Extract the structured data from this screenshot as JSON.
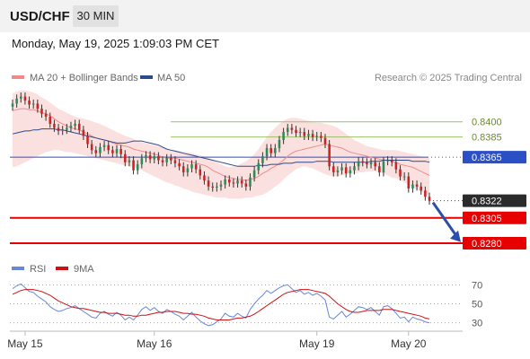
{
  "header": {
    "symbol": "USD/CHF",
    "timeframe": "30 MIN",
    "timestamp": "Monday, May 19, 2025 1:09:03 PM CET"
  },
  "colors": {
    "bull": "#2e8b57",
    "bear": "#cc2222",
    "ma20": "#f08a8a",
    "band": "#f7c6c6",
    "ma50": "#2b4b8c",
    "current": "#2b4fc4",
    "support": "#e60000",
    "resistance": "#9bc06a",
    "rsi": "#6a86d6",
    "rsi_ma": "#d01010"
  },
  "chart_data": [
    {
      "type": "candlestick",
      "title": "",
      "legend": [
        "MA 20 + Bollinger Bands",
        "MA 50"
      ],
      "legend_placement": "top-left",
      "credit": "Research © 2025 Trading Central",
      "x_ticks": [
        "May 15",
        "May 16",
        "May 19",
        "May 20"
      ],
      "ylim": [
        0.8272,
        0.8437
      ],
      "levels": [
        {
          "label": "0.8400",
          "value": 0.84,
          "kind": "resistance"
        },
        {
          "label": "0.8385",
          "value": 0.8385,
          "kind": "resistance"
        },
        {
          "label": "0.8365",
          "value": 0.8365,
          "kind": "current"
        },
        {
          "label": "0.8322",
          "value": 0.8322,
          "kind": "last"
        },
        {
          "label": "0.8305",
          "value": 0.8305,
          "kind": "support"
        },
        {
          "label": "0.8280",
          "value": 0.828,
          "kind": "support"
        }
      ],
      "forecast_arrow": {
        "from": 0.8322,
        "to": 0.8282,
        "direction": "down"
      },
      "close": [
        0.8418,
        0.8423,
        0.8425,
        0.8421,
        0.8417,
        0.8418,
        0.8413,
        0.8408,
        0.8405,
        0.8398,
        0.8394,
        0.8391,
        0.8392,
        0.8394,
        0.8396,
        0.8398,
        0.8392,
        0.8386,
        0.8378,
        0.8372,
        0.8369,
        0.8375,
        0.8377,
        0.8372,
        0.8369,
        0.8373,
        0.8368,
        0.836,
        0.8362,
        0.8352,
        0.8358,
        0.8364,
        0.8367,
        0.8363,
        0.8366,
        0.8362,
        0.836,
        0.8364,
        0.8362,
        0.8359,
        0.8356,
        0.835,
        0.8354,
        0.8358,
        0.8353,
        0.8347,
        0.8342,
        0.8336,
        0.8335,
        0.8336,
        0.8338,
        0.8343,
        0.834,
        0.8339,
        0.8342,
        0.8339,
        0.8336,
        0.8345,
        0.8352,
        0.8359,
        0.8366,
        0.8374,
        0.8369,
        0.8374,
        0.8382,
        0.839,
        0.8394,
        0.8392,
        0.8389,
        0.839,
        0.8386,
        0.8388,
        0.8385,
        0.8386,
        0.8384,
        0.8378,
        0.8356,
        0.835,
        0.8352,
        0.8355,
        0.8349,
        0.8352,
        0.8356,
        0.8361,
        0.836,
        0.8358,
        0.836,
        0.8356,
        0.835,
        0.8361,
        0.8362,
        0.836,
        0.8353,
        0.8346,
        0.8346,
        0.8334,
        0.8338,
        0.8336,
        0.8332,
        0.8326,
        0.8322
      ],
      "ma20": [
        0.8411,
        0.8412,
        0.8413,
        0.8413,
        0.8412,
        0.8412,
        0.8411,
        0.8409,
        0.8408,
        0.8406,
        0.8403,
        0.84,
        0.8398,
        0.8396,
        0.8394,
        0.8393,
        0.8392,
        0.839,
        0.8388,
        0.8386,
        0.8384,
        0.8383,
        0.8382,
        0.8381,
        0.8379,
        0.8378,
        0.8377,
        0.8376,
        0.8375,
        0.8373,
        0.8372,
        0.8371,
        0.837,
        0.8369,
        0.8368,
        0.8367,
        0.8365,
        0.8364,
        0.8364,
        0.8364,
        0.8363,
        0.8362,
        0.8361,
        0.836,
        0.8359,
        0.8358,
        0.8357,
        0.8355,
        0.8352,
        0.835,
        0.8348,
        0.8346,
        0.8345,
        0.8344,
        0.8343,
        0.8343,
        0.8342,
        0.8343,
        0.8344,
        0.8346,
        0.8349,
        0.8351,
        0.8354,
        0.8356,
        0.8359,
        0.8362,
        0.8366,
        0.8369,
        0.8371,
        0.8372,
        0.8373,
        0.8374,
        0.8375,
        0.8376,
        0.8377,
        0.8378,
        0.8377,
        0.8376,
        0.8375,
        0.8374,
        0.8372,
        0.837,
        0.8369,
        0.8368,
        0.8367,
        0.8366,
        0.8365,
        0.8364,
        0.8363,
        0.8362,
        0.8362,
        0.8361,
        0.836,
        0.8358,
        0.8357,
        0.8356,
        0.8355,
        0.8353,
        0.8351,
        0.8349,
        0.8347
      ],
      "bb_upper": [
        0.8428,
        0.843,
        0.8431,
        0.8431,
        0.843,
        0.8429,
        0.8427,
        0.8424,
        0.8422,
        0.8419,
        0.8416,
        0.8413,
        0.8411,
        0.8409,
        0.8407,
        0.8405,
        0.8404,
        0.8403,
        0.8402,
        0.8401,
        0.8399,
        0.8398,
        0.8396,
        0.8394,
        0.8392,
        0.839,
        0.8388,
        0.8386,
        0.8385,
        0.8383,
        0.8381,
        0.838,
        0.8379,
        0.8378,
        0.8377,
        0.8376,
        0.8375,
        0.8373,
        0.8372,
        0.8372,
        0.8371,
        0.837,
        0.837,
        0.8369,
        0.8368,
        0.8367,
        0.8366,
        0.8364,
        0.8362,
        0.836,
        0.8358,
        0.8356,
        0.8355,
        0.8356,
        0.8357,
        0.8359,
        0.8361,
        0.8364,
        0.8368,
        0.8373,
        0.8379,
        0.8385,
        0.839,
        0.8394,
        0.8398,
        0.8401,
        0.8403,
        0.8404,
        0.8404,
        0.8403,
        0.8402,
        0.8401,
        0.84,
        0.8399,
        0.8399,
        0.8398,
        0.8397,
        0.8396,
        0.8394,
        0.8391,
        0.8388,
        0.8385,
        0.8382,
        0.838,
        0.8378,
        0.8376,
        0.8375,
        0.8374,
        0.8373,
        0.8372,
        0.8372,
        0.8372,
        0.8372,
        0.8371,
        0.837,
        0.8369,
        0.8368,
        0.8367,
        0.8366,
        0.8365,
        0.8364
      ],
      "bb_lower": [
        0.8355,
        0.8356,
        0.8358,
        0.836,
        0.8362,
        0.8364,
        0.8366,
        0.8368,
        0.837,
        0.8371,
        0.8372,
        0.8372,
        0.8371,
        0.837,
        0.837,
        0.8369,
        0.8368,
        0.8367,
        0.8366,
        0.8365,
        0.8364,
        0.8363,
        0.8362,
        0.8361,
        0.836,
        0.8359,
        0.8358,
        0.8357,
        0.8356,
        0.8355,
        0.8354,
        0.8352,
        0.835,
        0.8348,
        0.8346,
        0.8344,
        0.8342,
        0.834,
        0.8339,
        0.8337,
        0.8336,
        0.8334,
        0.8333,
        0.8331,
        0.833,
        0.8329,
        0.8328,
        0.8327,
        0.8326,
        0.8325,
        0.8325,
        0.8325,
        0.8324,
        0.8324,
        0.8324,
        0.8324,
        0.8325,
        0.8325,
        0.8326,
        0.8327,
        0.8328,
        0.833,
        0.8333,
        0.8336,
        0.8339,
        0.8343,
        0.8347,
        0.835,
        0.8353,
        0.8355,
        0.8356,
        0.8355,
        0.8354,
        0.8352,
        0.835,
        0.8348,
        0.8347,
        0.8346,
        0.8346,
        0.8347,
        0.8348,
        0.8349,
        0.8349,
        0.835,
        0.835,
        0.8351,
        0.8351,
        0.8351,
        0.835,
        0.8349,
        0.8347,
        0.8345,
        0.8344,
        0.8342,
        0.834,
        0.8338,
        0.8335,
        0.8333,
        0.8331,
        0.8329,
        0.8327
      ],
      "ma50": [
        0.8388,
        0.8389,
        0.839,
        0.8391,
        0.8391,
        0.8392,
        0.8392,
        0.8393,
        0.8393,
        0.8393,
        0.8393,
        0.8392,
        0.8392,
        0.8391,
        0.839,
        0.8389,
        0.8388,
        0.8387,
        0.8386,
        0.8385,
        0.8384,
        0.8383,
        0.8382,
        0.8381,
        0.838,
        0.8379,
        0.8379,
        0.8379,
        0.838,
        0.8381,
        0.8381,
        0.8381,
        0.838,
        0.8379,
        0.8378,
        0.8377,
        0.8375,
        0.8373,
        0.8372,
        0.8371,
        0.837,
        0.8369,
        0.8368,
        0.8367,
        0.8366,
        0.8365,
        0.8364,
        0.8363,
        0.8362,
        0.8361,
        0.836,
        0.8359,
        0.8358,
        0.8357,
        0.8356,
        0.8356,
        0.8356,
        0.8356,
        0.8356,
        0.8357,
        0.8357,
        0.8357,
        0.8358,
        0.8358,
        0.8358,
        0.8359,
        0.8359,
        0.8359,
        0.836,
        0.836,
        0.836,
        0.836,
        0.836,
        0.8361,
        0.8361,
        0.8361,
        0.8361,
        0.836,
        0.836,
        0.836,
        0.836,
        0.836,
        0.836,
        0.836,
        0.836,
        0.836,
        0.8361,
        0.8361,
        0.8361,
        0.8362,
        0.8362,
        0.8362,
        0.8362,
        0.8362,
        0.8362,
        0.8362,
        0.8361,
        0.8361,
        0.8361,
        0.8361,
        0.836
      ]
    },
    {
      "type": "line",
      "title": "",
      "legend": [
        "RSI",
        "9MA"
      ],
      "legend_placement": "top-left",
      "y_ticks": [
        70,
        50,
        30
      ],
      "ylim": [
        24,
        76
      ],
      "series": [
        {
          "name": "RSI",
          "values": [
            66,
            69,
            71,
            67,
            63,
            62,
            58,
            55,
            52,
            47,
            44,
            42,
            43,
            45,
            46,
            48,
            45,
            42,
            39,
            36,
            35,
            40,
            42,
            39,
            37,
            41,
            38,
            33,
            36,
            33,
            38,
            44,
            47,
            43,
            46,
            42,
            40,
            44,
            42,
            39,
            37,
            33,
            37,
            41,
            36,
            32,
            29,
            27,
            28,
            31,
            34,
            40,
            37,
            36,
            40,
            37,
            35,
            44,
            50,
            55,
            59,
            64,
            61,
            64,
            67,
            69,
            70,
            66,
            62,
            64,
            60,
            62,
            59,
            61,
            58,
            54,
            36,
            34,
            38,
            42,
            36,
            39,
            43,
            47,
            46,
            44,
            46,
            42,
            38,
            47,
            48,
            45,
            40,
            35,
            36,
            31,
            36,
            34,
            33,
            31,
            30
          ]
        },
        {
          "name": "9MA",
          "values": [
            60,
            62,
            64,
            65,
            65,
            65,
            64,
            63,
            61,
            59,
            56,
            53,
            51,
            49,
            47,
            46,
            45,
            45,
            44,
            43,
            42,
            41,
            41,
            40,
            40,
            40,
            39,
            38,
            38,
            37,
            37,
            38,
            38,
            39,
            40,
            41,
            41,
            42,
            42,
            42,
            41,
            40,
            40,
            39,
            39,
            38,
            37,
            35,
            34,
            33,
            33,
            33,
            33,
            34,
            35,
            35,
            36,
            37,
            39,
            42,
            45,
            48,
            51,
            54,
            57,
            60,
            62,
            63,
            64,
            65,
            65,
            65,
            64,
            63,
            62,
            61,
            58,
            54,
            50,
            47,
            44,
            42,
            41,
            41,
            42,
            43,
            43,
            43,
            43,
            44,
            44,
            44,
            43,
            42,
            41,
            40,
            39,
            38,
            37,
            35,
            34
          ]
        }
      ]
    }
  ]
}
